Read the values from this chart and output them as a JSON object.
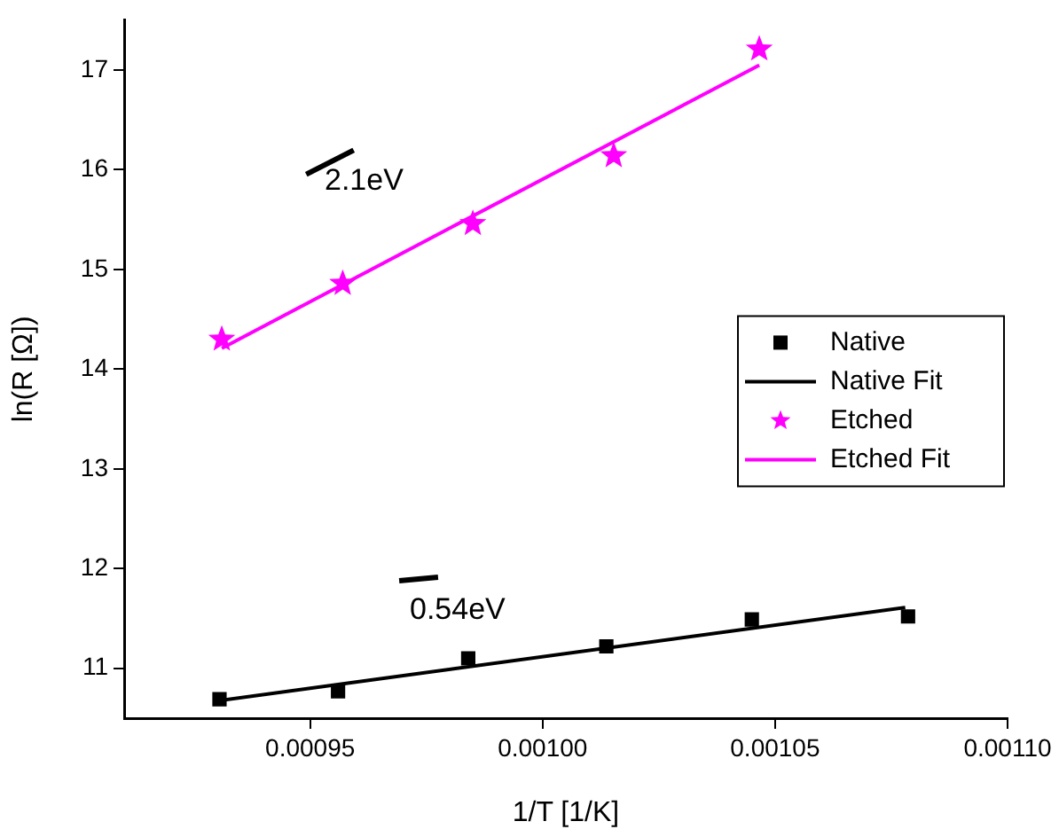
{
  "chart_data": {
    "type": "scatter",
    "xlabel": "1/T [1/K]",
    "ylabel": "ln(R [Ω])",
    "xlim": [
      0.00091,
      0.0011
    ],
    "xticks": [
      {
        "value": 0.00095,
        "label": "0.00095"
      },
      {
        "value": 0.001,
        "label": "0.00100"
      },
      {
        "value": 0.00105,
        "label": "0.00105"
      },
      {
        "value": 0.0011,
        "label": "0.00110"
      }
    ],
    "ylim": [
      10.5,
      17.5
    ],
    "yticks": [
      11,
      12,
      13,
      14,
      15,
      16,
      17
    ],
    "grid": false,
    "legend": "right",
    "series": [
      {
        "name": "Native",
        "type": "scatter",
        "marker": "square",
        "color": "#000000",
        "x": [
          0.0009305,
          0.000956,
          0.000984,
          0.0010137,
          0.001045,
          0.0010786
        ],
        "values": [
          10.69,
          10.77,
          11.1,
          11.22,
          11.49,
          11.52
        ]
      },
      {
        "name": "Native Fit",
        "type": "line",
        "marker": "none",
        "color": "#000000",
        "x": [
          0.000931,
          0.001078
        ],
        "values": [
          10.68,
          11.61
        ]
      },
      {
        "name": "Etched",
        "type": "scatter",
        "marker": "star",
        "color": "#ff00ff",
        "x": [
          0.000931,
          0.000957,
          0.000985,
          0.0010153,
          0.0010466
        ],
        "values": [
          14.3,
          14.86,
          15.46,
          16.14,
          17.21
        ]
      },
      {
        "name": "Etched Fit",
        "type": "line",
        "marker": "none",
        "color": "#ff00ff",
        "x": [
          0.000931,
          0.0010466
        ],
        "values": [
          14.21,
          17.05
        ]
      }
    ],
    "annotations": [
      "2.1eV",
      "0.54eV"
    ]
  }
}
